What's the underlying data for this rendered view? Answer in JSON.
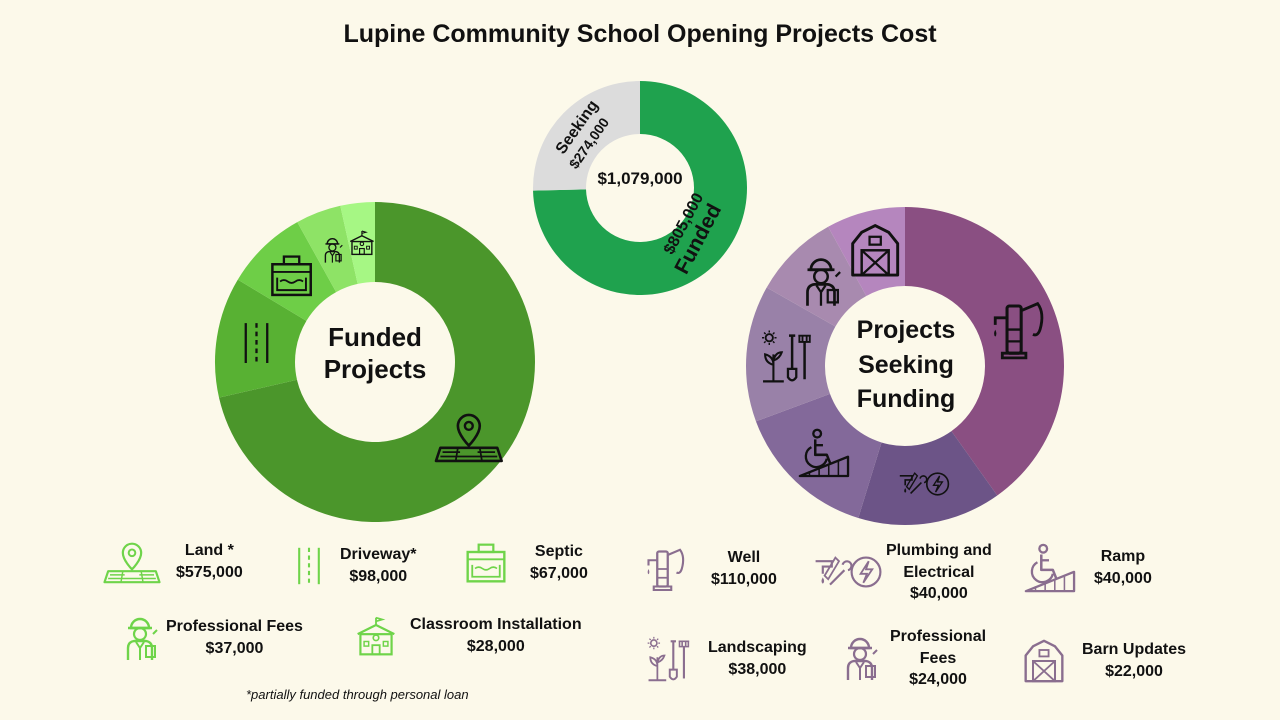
{
  "title": "Lupine Community School Opening Projects Cost",
  "colors": {
    "background": "#fcf9ea",
    "funded_dark": "#4b962b",
    "funded_mid": "#58b133",
    "funded_light": "#6ece47",
    "funded_lighter": "#8ee366",
    "funded_lightest": "#a6f784",
    "total_funded": "#1fa24e",
    "total_seeking": "#dcdcdc",
    "seeking_dark": "#8a4f82",
    "seeking_indigo": "#6c5487",
    "seeking_mid": "#83699a",
    "seeking_light": "#9981a8",
    "seeking_lighter": "#a88aaf",
    "seeking_lightest": "#b586be",
    "green_icon": "#6fd44a",
    "purple_icon": "#8a6e8f"
  },
  "chart_data": [
    {
      "type": "donut",
      "center_label": [
        "Funded",
        "Projects"
      ],
      "categories": [
        "Land *",
        "Driveway*",
        "Septic",
        "Professional Fees",
        "Classroom Installation"
      ],
      "values": [
        575000,
        98000,
        67000,
        37000,
        28000
      ],
      "icons": [
        "map-pin-icon",
        "road-icon",
        "septic-tank-icon",
        "worker-icon",
        "school-icon"
      ]
    },
    {
      "type": "donut",
      "center_label": "$1,079,000",
      "categories": [
        "Funded",
        "Seeking"
      ],
      "values": [
        805000,
        274000
      ],
      "value_labels": [
        "$805,000",
        "$274,000"
      ]
    },
    {
      "type": "donut",
      "center_label": [
        "Projects",
        "Seeking",
        "Funding"
      ],
      "categories": [
        "Well",
        "Plumbing and Electrical",
        "Ramp",
        "Landscaping",
        "Professional Fees",
        "Barn Updates"
      ],
      "values": [
        110000,
        40000,
        40000,
        38000,
        24000,
        22000
      ],
      "icons": [
        "water-pump-icon",
        "plumbing-electrical-icon",
        "wheelchair-ramp-icon",
        "landscaping-tools-icon",
        "worker-icon",
        "barn-icon"
      ]
    }
  ],
  "legend_funded": [
    {
      "label": "Land *",
      "value": "$575,000",
      "icon": "map-pin-icon"
    },
    {
      "label": "Driveway*",
      "value": "$98,000",
      "icon": "road-icon"
    },
    {
      "label": "Septic",
      "value": "$67,000",
      "icon": "septic-tank-icon"
    },
    {
      "label": "Professional Fees",
      "value": "$37,000",
      "icon": "worker-icon"
    },
    {
      "label": "Classroom Installation",
      "value": "$28,000",
      "icon": "school-icon"
    }
  ],
  "legend_seeking": [
    {
      "label": "Well",
      "value": "$110,000",
      "icon": "water-pump-icon"
    },
    {
      "label_lines": [
        "Plumbing and",
        "Electrical"
      ],
      "value": "$40,000",
      "icon": "plumbing-electrical-icon"
    },
    {
      "label": "Ramp",
      "value": "$40,000",
      "icon": "wheelchair-ramp-icon"
    },
    {
      "label": "Landscaping",
      "value": "$38,000",
      "icon": "landscaping-tools-icon"
    },
    {
      "label_lines": [
        "Professional",
        "Fees"
      ],
      "value": "$24,000",
      "icon": "worker-icon"
    },
    {
      "label": "Barn Updates",
      "value": "$22,000",
      "icon": "barn-icon"
    }
  ],
  "footnote": "*partially funded through personal loan"
}
